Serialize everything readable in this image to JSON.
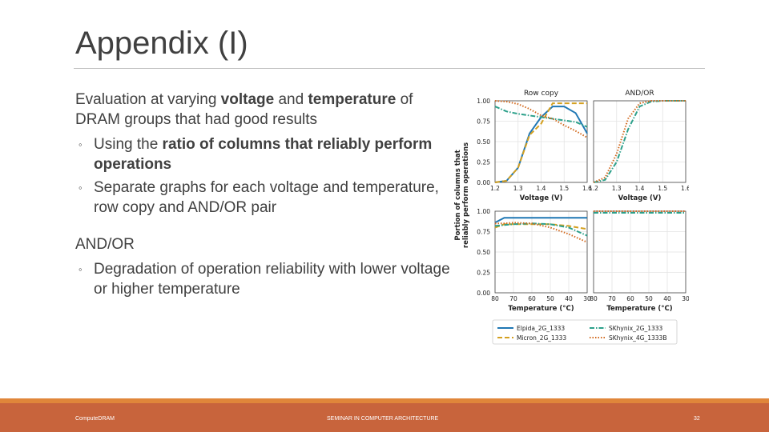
{
  "slide": {
    "title": "Appendix (I)",
    "intro_1": "Evaluation at varying ",
    "intro_b1": "voltage",
    "intro_2": " and ",
    "intro_b2": "temperature",
    "intro_3": " of DRAM groups that had good results",
    "b1_1": "Using the ",
    "b1_b": "ratio of columns that reliably perform operations",
    "b2": "Separate graphs for each voltage and temperature, row copy and AND/OR pair",
    "andor_heading": "AND/OR",
    "b3": "Degradation of operation reliability with lower voltage or higher temperature",
    "bullet_symbol": "◦"
  },
  "footer": {
    "left": "ComputeDRAM",
    "center": "SEMINAR IN COMPUTER ARCHITECTURE",
    "page": "32",
    "color": "#c8643c",
    "accent": "#e0863a"
  },
  "chart_data": {
    "type": "line",
    "ylabel": "Portion of columns that reliably perform operations",
    "colors": {
      "Elpida_2G_1333": "#1f77b4",
      "Micron_2G_1333": "#d4a020",
      "SKhynix_2G_1333": "#2ca08a",
      "SKhynix_4G_1333B": "#d2691e"
    },
    "styles": {
      "Elpida_2G_1333": "",
      "Micron_2G_1333": "6,3",
      "SKhynix_2G_1333": "6,2,1.5,2",
      "SKhynix_4G_1333B": "1.5,2"
    },
    "legend": [
      "Elpida_2G_1333",
      "Micron_2G_1333",
      "SKhynix_2G_1333",
      "SKhynix_4G_1333B"
    ],
    "yticks": [
      "1.00",
      "0.75",
      "0.50",
      "0.25",
      "0.00"
    ],
    "ylim": [
      0,
      1
    ],
    "panels": [
      {
        "title": "Row copy",
        "xlabel": "Voltage (V)",
        "xticks": [
          "1.2",
          "1.3",
          "1.4",
          "1.5",
          "1.6"
        ],
        "xlim": [
          1.2,
          1.6
        ],
        "series": [
          {
            "name": "Elpida_2G_1333",
            "x": [
              1.2,
              1.25,
              1.3,
              1.35,
              1.4,
              1.45,
              1.5,
              1.55,
              1.6
            ],
            "y": [
              0.0,
              0.02,
              0.18,
              0.6,
              0.8,
              0.93,
              0.93,
              0.85,
              0.6
            ]
          },
          {
            "name": "Micron_2G_1333",
            "x": [
              1.2,
              1.25,
              1.3,
              1.35,
              1.4,
              1.45,
              1.5,
              1.55,
              1.6
            ],
            "y": [
              0.0,
              0.02,
              0.18,
              0.58,
              0.72,
              0.97,
              0.97,
              0.97,
              0.97
            ]
          },
          {
            "name": "SKhynix_2G_1333",
            "x": [
              1.2,
              1.25,
              1.3,
              1.35,
              1.4,
              1.45,
              1.5,
              1.55,
              1.6
            ],
            "y": [
              0.93,
              0.87,
              0.84,
              0.82,
              0.8,
              0.78,
              0.76,
              0.74,
              0.68
            ]
          },
          {
            "name": "SKhynix_4G_1333B",
            "x": [
              1.2,
              1.25,
              1.3,
              1.35,
              1.4,
              1.45,
              1.5,
              1.55,
              1.6
            ],
            "y": [
              1.0,
              0.99,
              0.96,
              0.9,
              0.82,
              0.78,
              0.7,
              0.63,
              0.55
            ]
          }
        ]
      },
      {
        "title": "AND/OR",
        "xlabel": "Voltage (V)",
        "xticks": [
          "1.2",
          "1.3",
          "1.4",
          "1.5",
          "1.6"
        ],
        "xlim": [
          1.2,
          1.6
        ],
        "series": [
          {
            "name": "SKhynix_2G_1333",
            "x": [
              1.2,
              1.25,
              1.3,
              1.35,
              1.4,
              1.45,
              1.5,
              1.55,
              1.6
            ],
            "y": [
              0.0,
              0.03,
              0.25,
              0.65,
              0.93,
              0.99,
              1.0,
              1.0,
              1.0
            ]
          },
          {
            "name": "SKhynix_4G_1333B",
            "x": [
              1.2,
              1.25,
              1.3,
              1.35,
              1.4,
              1.45,
              1.5,
              1.55,
              1.6
            ],
            "y": [
              0.0,
              0.06,
              0.35,
              0.78,
              0.97,
              1.0,
              1.0,
              1.0,
              1.0
            ]
          }
        ]
      },
      {
        "title": "",
        "xlabel": "Temperature (°C)",
        "xticks": [
          "80",
          "70",
          "60",
          "50",
          "40",
          "30"
        ],
        "xlim": [
          80,
          30
        ],
        "series": [
          {
            "name": "Elpida_2G_1333",
            "x": [
              80,
              75,
              70,
              60,
              50,
              40,
              30
            ],
            "y": [
              0.86,
              0.92,
              0.92,
              0.92,
              0.92,
              0.92,
              0.92
            ]
          },
          {
            "name": "Micron_2G_1333",
            "x": [
              80,
              75,
              70,
              60,
              50,
              40,
              30
            ],
            "y": [
              0.8,
              0.84,
              0.84,
              0.84,
              0.84,
              0.82,
              0.78
            ]
          },
          {
            "name": "SKhynix_2G_1333",
            "x": [
              80,
              75,
              70,
              60,
              50,
              40,
              30
            ],
            "y": [
              0.82,
              0.83,
              0.84,
              0.85,
              0.84,
              0.8,
              0.7
            ]
          },
          {
            "name": "SKhynix_4G_1333B",
            "x": [
              80,
              75,
              70,
              60,
              50,
              40,
              30
            ],
            "y": [
              0.85,
              0.85,
              0.86,
              0.85,
              0.8,
              0.72,
              0.62
            ]
          }
        ]
      },
      {
        "title": "",
        "xlabel": "Temperature (°C)",
        "xticks": [
          "80",
          "70",
          "60",
          "50",
          "40",
          "30"
        ],
        "xlim": [
          80,
          30
        ],
        "series": [
          {
            "name": "SKhynix_2G_1333",
            "x": [
              80,
              70,
              60,
              50,
              40,
              30
            ],
            "y": [
              0.98,
              0.98,
              0.98,
              0.98,
              0.98,
              0.98
            ]
          },
          {
            "name": "SKhynix_4G_1333B",
            "x": [
              80,
              70,
              60,
              50,
              40,
              30
            ],
            "y": [
              1.0,
              1.0,
              1.0,
              1.0,
              1.0,
              1.0
            ]
          }
        ]
      }
    ]
  }
}
